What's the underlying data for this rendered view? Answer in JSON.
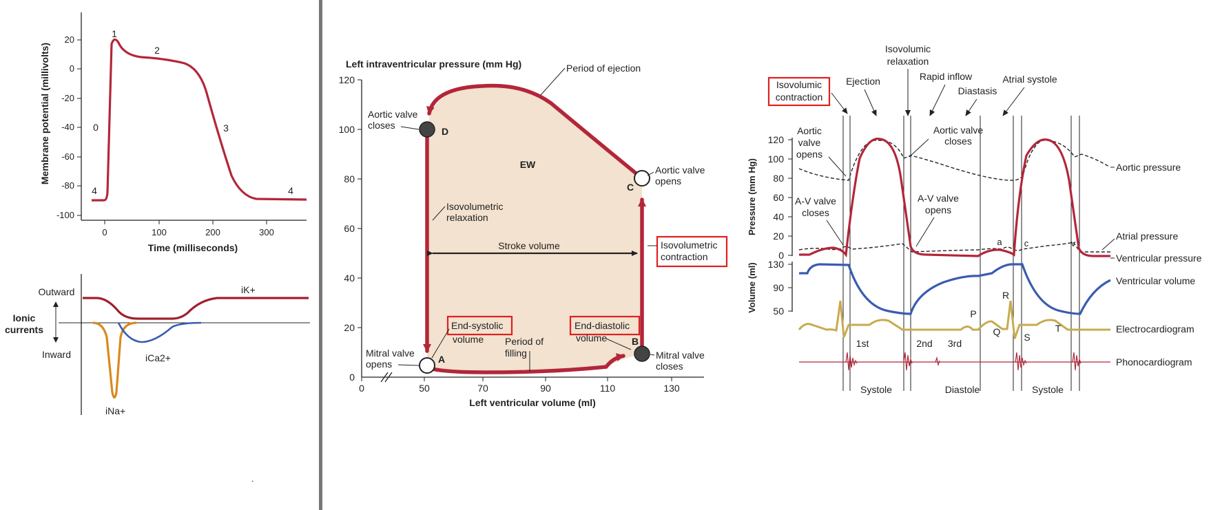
{
  "colors": {
    "red_curve": "#b3263a",
    "loop_fill": "#f2e2cf",
    "blue": "#3a5bb0",
    "orange": "#d88a1e",
    "gold": "#c8aa50",
    "highlight_box": "#e0201e",
    "divider": "#777777"
  },
  "ap": {
    "ylabel": "Membrane potential (millivolts)",
    "xlabel": "Time (milliseconds)",
    "yticks": [
      "20",
      "0",
      "-20",
      "-40",
      "-60",
      "-80",
      "-100"
    ],
    "xticks": [
      "0",
      "100",
      "200",
      "300"
    ],
    "phases": [
      "1",
      "2",
      "0",
      "3",
      "4",
      "4"
    ]
  },
  "currents": {
    "title_line1": "Ionic",
    "title_line2": "currents",
    "outward": "Outward",
    "inward": "Inward",
    "ik": "iK+",
    "ica": "iCa2+",
    "ina": "iNa+",
    "dot": "."
  },
  "pv": {
    "ylabel": "Left intraventricular pressure (mm Hg)",
    "xlabel": "Left ventricular volume (ml)",
    "yticks": [
      "120",
      "100",
      "80",
      "60",
      "40",
      "20",
      "0"
    ],
    "xticks": [
      "0",
      "50",
      "70",
      "90",
      "110",
      "130"
    ],
    "ew": "EW",
    "point_a": "A",
    "point_b": "B",
    "point_c": "C",
    "point_d": "D",
    "period_ejection": "Period of ejection",
    "aortic_closes_1": "Aortic valve",
    "aortic_closes_2": "closes",
    "aortic_opens_1": "Aortic valve",
    "aortic_opens_2": "opens",
    "iso_relax_1": "Isovolumetric",
    "iso_relax_2": "relaxation",
    "stroke_volume": "Stroke volume",
    "iso_contr_1": "Isovolumetric",
    "iso_contr_2": "contraction",
    "end_systolic_1": "End-systolic",
    "end_systolic_2": "volume",
    "end_diastolic_1": "End-diastolic",
    "end_diastolic_2": "volume",
    "filling_1": "Period of",
    "filling_2": "filling",
    "mitral_opens_1": "Mitral valve",
    "mitral_opens_2": "opens",
    "mitral_closes_1": "Mitral valve",
    "mitral_closes_2": "closes"
  },
  "wiggers": {
    "iso_contr_1": "Isovolumic",
    "iso_contr_2": "contraction",
    "ejection": "Ejection",
    "iso_relax_1": "Isovolumic",
    "iso_relax_2": "relaxation",
    "rapid_inflow": "Rapid inflow",
    "diastasis": "Diastasis",
    "atrial_systole": "Atrial systole",
    "aortic_opens_1": "Aortic",
    "aortic_opens_2": "valve",
    "aortic_opens_3": "opens",
    "aortic_closes_1": "Aortic valve",
    "aortic_closes_2": "closes",
    "av_closes_1": "A-V valve",
    "av_closes_2": "closes",
    "av_opens_1": "A-V valve",
    "av_opens_2": "opens",
    "pressure_label": "Pressure (mm Hg)",
    "volume_label": "Volume (ml)",
    "pressure_ticks": [
      "120",
      "100",
      "80",
      "60",
      "40",
      "20",
      "0"
    ],
    "volume_ticks": [
      "130",
      "90",
      "50"
    ],
    "aortic_pressure": "Aortic pressure",
    "atrial_pressure": "Atrial pressure",
    "ventricular_pressure": "Ventricular pressure",
    "ventricular_volume": "Ventricular volume",
    "ecg": "Electrocardiogram",
    "pcg": "Phonocardiogram",
    "wave_a": "a",
    "wave_c": "c",
    "wave_v": "v",
    "wave_p": "P",
    "wave_q": "Q",
    "wave_r": "R",
    "wave_s": "S",
    "wave_t": "T",
    "sound_1st": "1st",
    "sound_2nd": "2nd",
    "sound_3rd": "3rd",
    "systole": "Systole",
    "diastole": "Diastole"
  }
}
